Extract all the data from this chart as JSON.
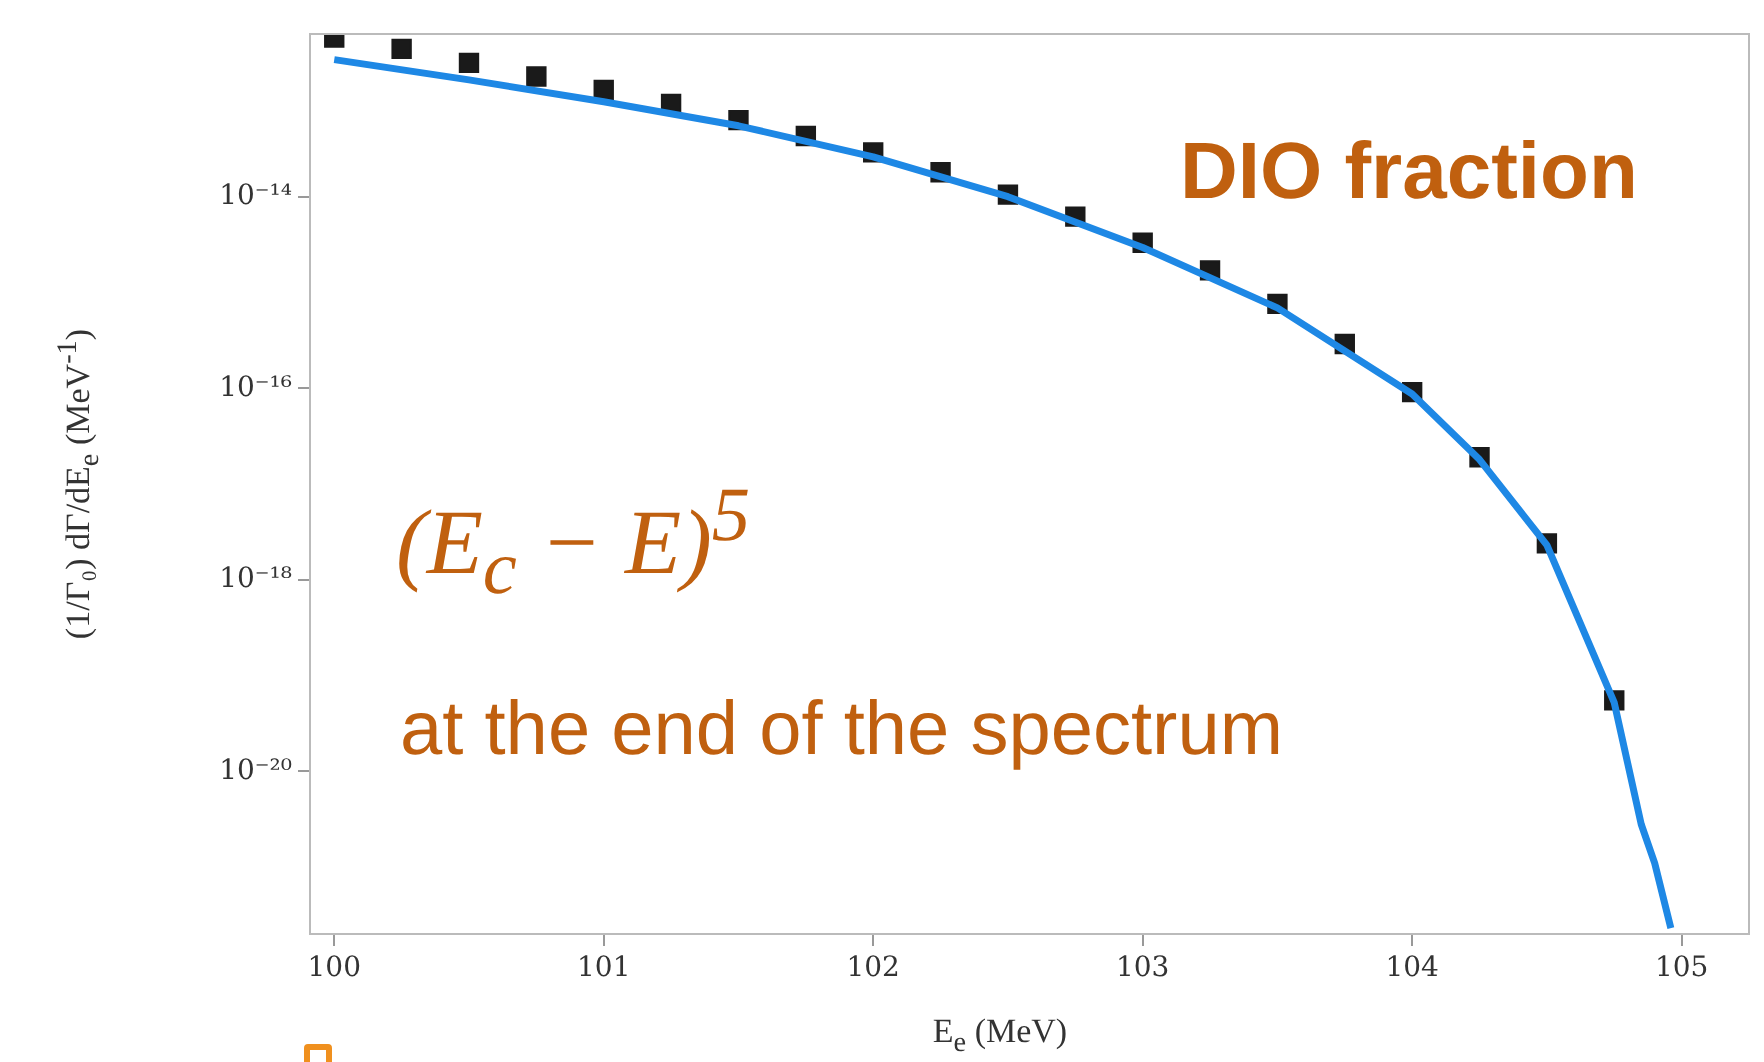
{
  "chart_data": {
    "type": "scatter",
    "xlabel": "E$_{e}$ (MeV)",
    "ylabel": "(1/Γ₀) dΓ/dE$_{e}$ (MeV$^{-1}$)",
    "log": "y",
    "grid": false,
    "legend": false,
    "xlim": [
      99.91,
      105.25
    ],
    "xticks": [
      100,
      101,
      102,
      103,
      104,
      105
    ],
    "ylim": [
      2e-22,
      5e-13
    ],
    "yticks": [
      {
        "value": 1e-14,
        "label": "10⁻¹⁴"
      },
      {
        "value": 1e-16,
        "label": "10⁻¹⁶"
      },
      {
        "value": 1e-18,
        "label": "10⁻¹⁸"
      },
      {
        "value": 1e-20,
        "label": "10⁻²⁰"
      }
    ],
    "annotations": [
      "DIO fraction",
      "(E$_{c}$ − E)$^{5}$",
      "at the end of the spectrum"
    ],
    "series": [
      {
        "marker": "square",
        "color": "#1a1a1a",
        "x": [
          100,
          100.25,
          100.5,
          100.75,
          101,
          101.25,
          101.5,
          101.75,
          102,
          102.25,
          102.5,
          102.75,
          103,
          103.25,
          103.5,
          103.75,
          104,
          104.25,
          104.5,
          104.75
        ],
        "values": [
          4.6e-13,
          3.5e-13,
          2.5e-13,
          1.8e-13,
          1.3e-13,
          9.3e-14,
          6.3e-14,
          4.3e-14,
          2.9e-14,
          1.8e-14,
          1.05e-14,
          6.2e-15,
          3.3e-15,
          1.7e-15,
          7.6e-16,
          2.9e-16,
          9.1e-17,
          1.9e-17,
          2.4e-18,
          5.5e-20
        ]
      },
      {
        "type": "line",
        "marker": "none",
        "line_style": "solid",
        "color": "#1e88e5",
        "x": [
          100,
          100.5,
          101,
          101.5,
          102,
          102.5,
          103,
          103.5,
          104,
          104.25,
          104.5,
          104.75,
          104.85,
          104.9,
          104.96
        ],
        "values": [
          2.7e-13,
          1.66e-13,
          9.8e-14,
          5.5e-14,
          2.6e-14,
          1e-14,
          2.95e-15,
          6.9e-16,
          8.7e-17,
          1.8e-17,
          2.3e-18,
          5.2e-20,
          2.8e-21,
          1.1e-21,
          2.3e-22
        ]
      }
    ]
  }
}
